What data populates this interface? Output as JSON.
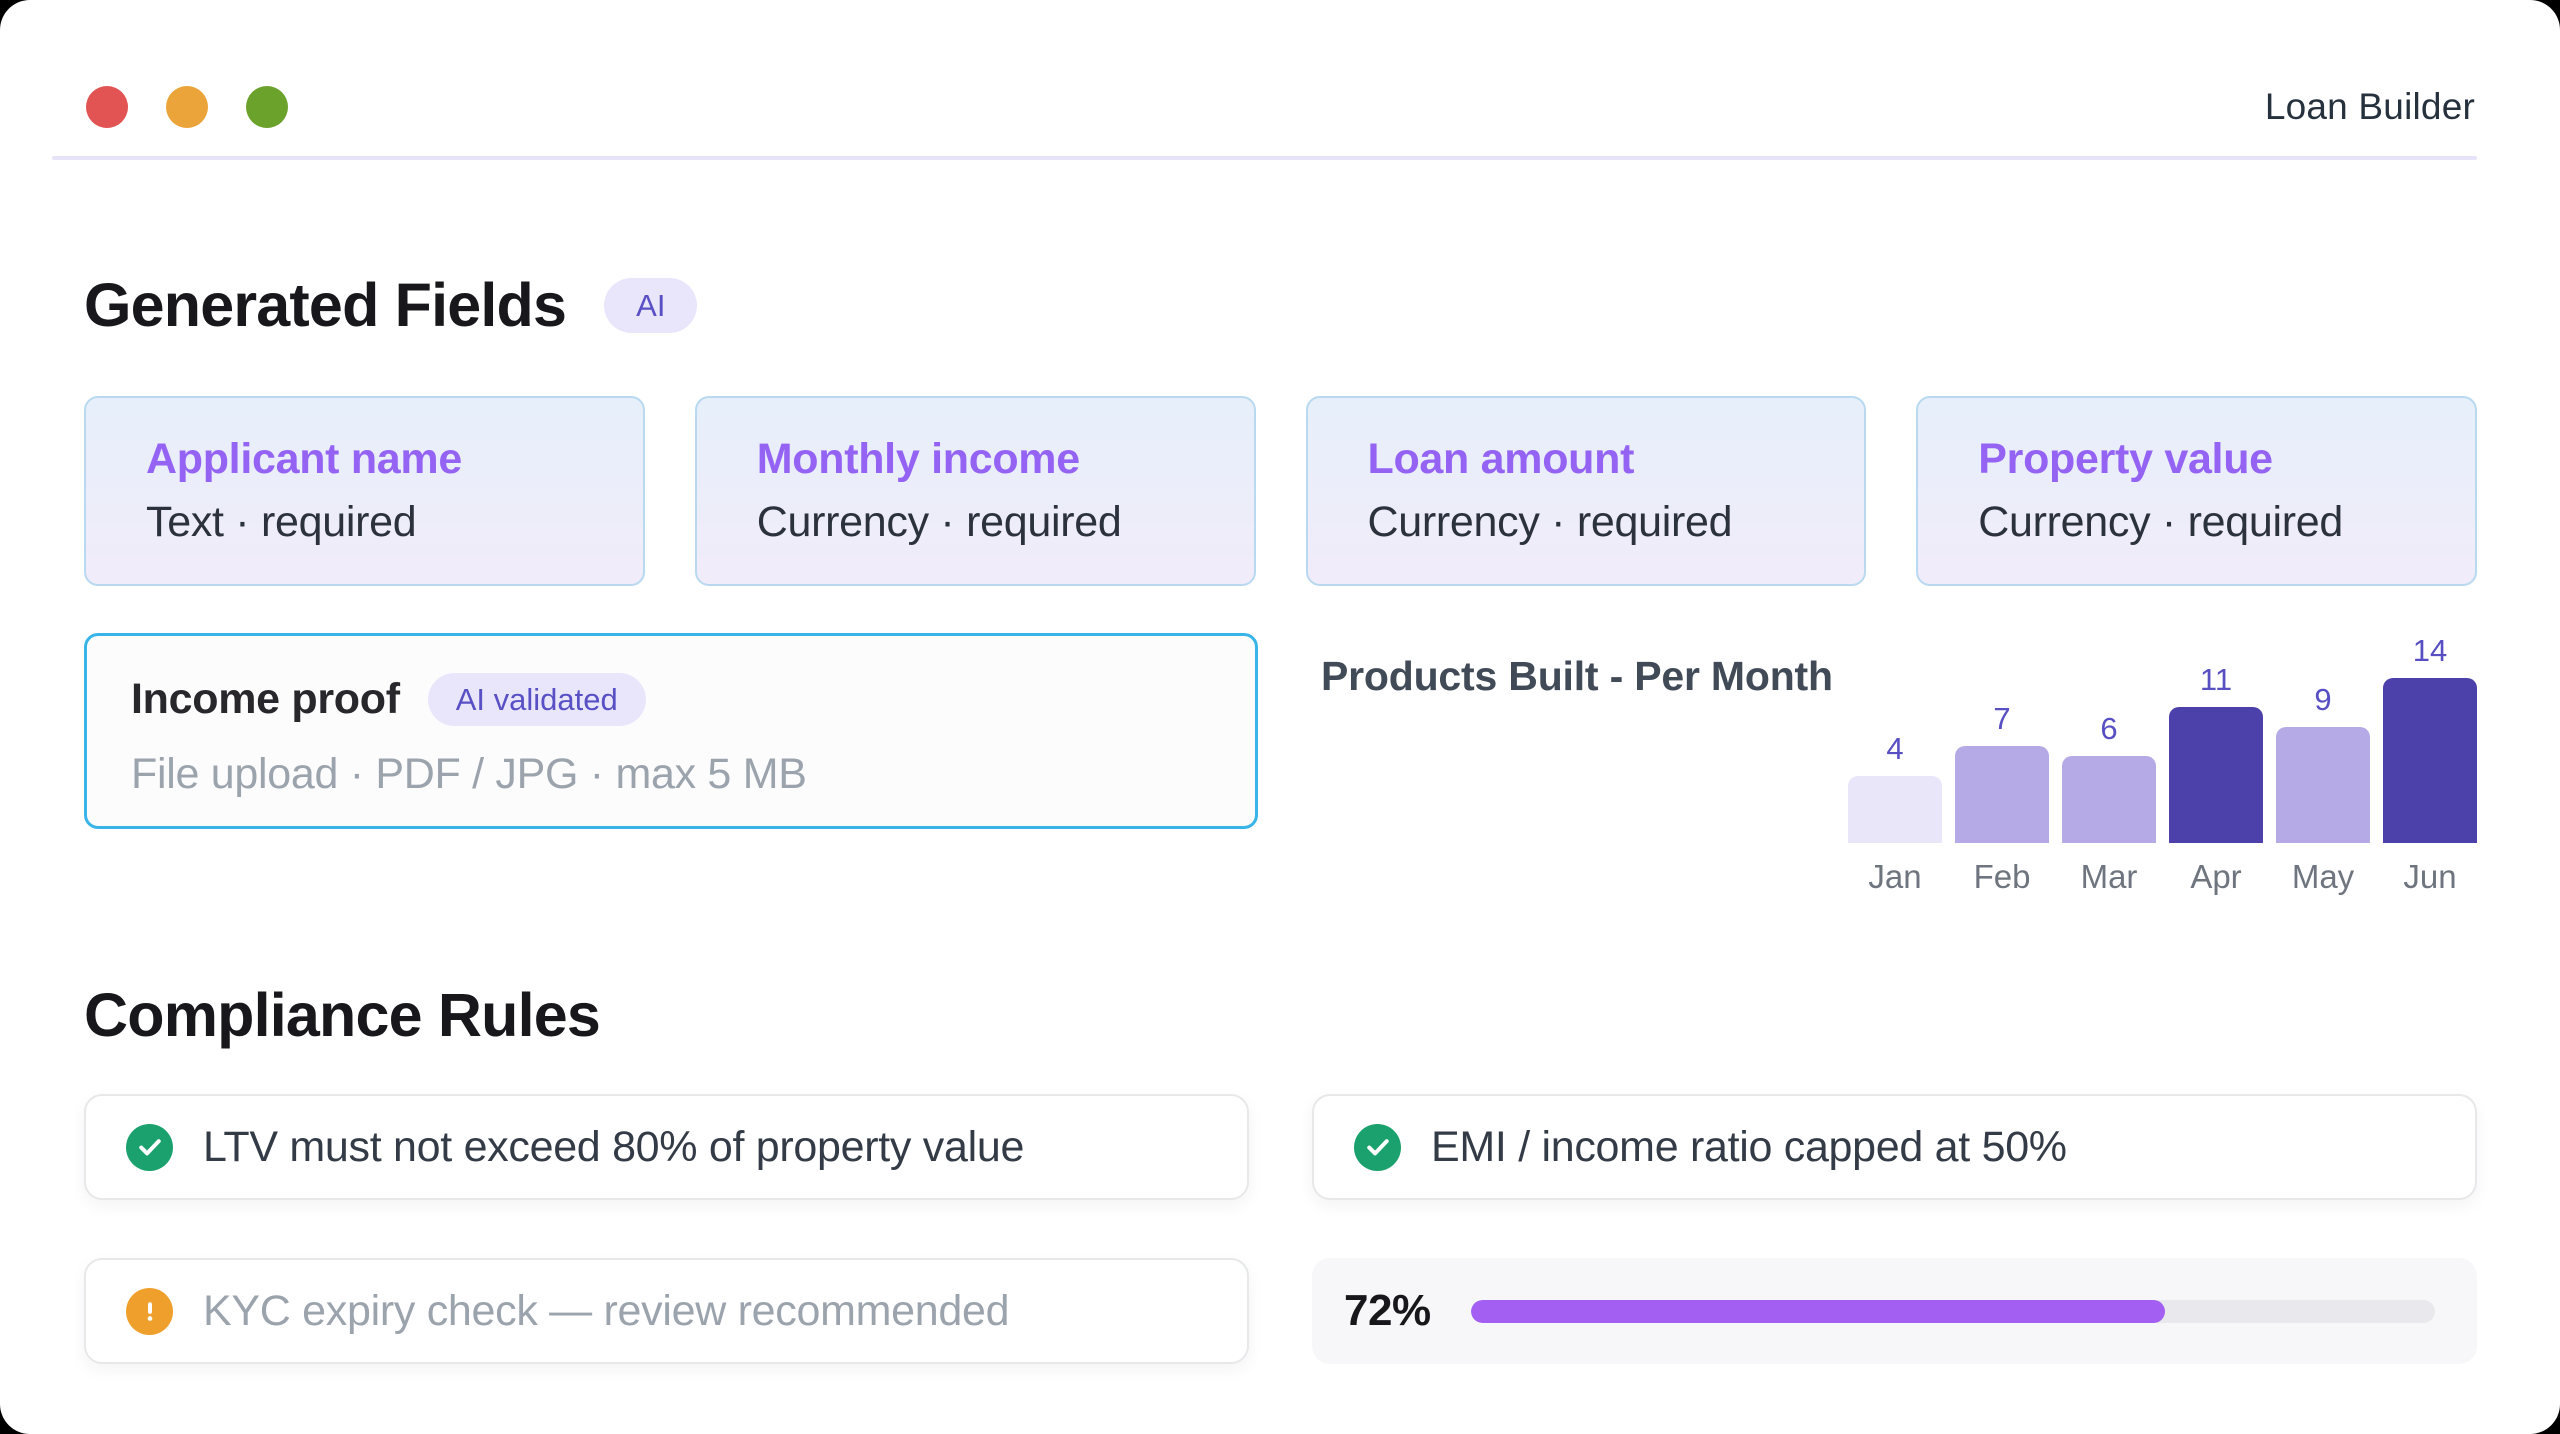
{
  "window": {
    "title": "Loan Builder"
  },
  "generated_fields": {
    "heading": "Generated Fields",
    "badge": "AI",
    "fields": [
      {
        "name": "Applicant name",
        "meta": "Text · required"
      },
      {
        "name": "Monthly income",
        "meta": "Currency · required"
      },
      {
        "name": "Loan amount",
        "meta": "Currency · required"
      },
      {
        "name": "Property value",
        "meta": "Currency · required"
      }
    ],
    "upload_field": {
      "name": "Income proof",
      "badge": "AI validated",
      "meta": "File upload · PDF / JPG · max 5 MB"
    }
  },
  "chart_data": {
    "type": "bar",
    "title": "Products Built - Per Month",
    "categories": [
      "Jan",
      "Feb",
      "Mar",
      "Apr",
      "May",
      "Jun"
    ],
    "values": [
      4,
      7,
      6,
      11,
      9,
      14
    ],
    "bar_colors": [
      "#e9e6fa",
      "#b5aae6",
      "#b5aae6",
      "#4c41ab",
      "#b5aae6",
      "#4c41ab"
    ],
    "value_label_color": "#584fc2",
    "xlabel": "",
    "ylabel": "",
    "ylim": [
      0,
      14
    ],
    "grid": false,
    "value_labels": true,
    "legend": false
  },
  "compliance": {
    "heading": "Compliance Rules",
    "rules": [
      {
        "status": "pass",
        "icon": "check-circle",
        "text": "LTV must not exceed 80% of property value"
      },
      {
        "status": "pass",
        "icon": "check-circle",
        "text": "EMI / income ratio capped at 50%"
      },
      {
        "status": "warning",
        "icon": "warning-circle",
        "text": "KYC expiry check — review recommended"
      }
    ],
    "progress": {
      "label": "72%",
      "percent": 72,
      "fill_color": "#a35ef2"
    }
  }
}
